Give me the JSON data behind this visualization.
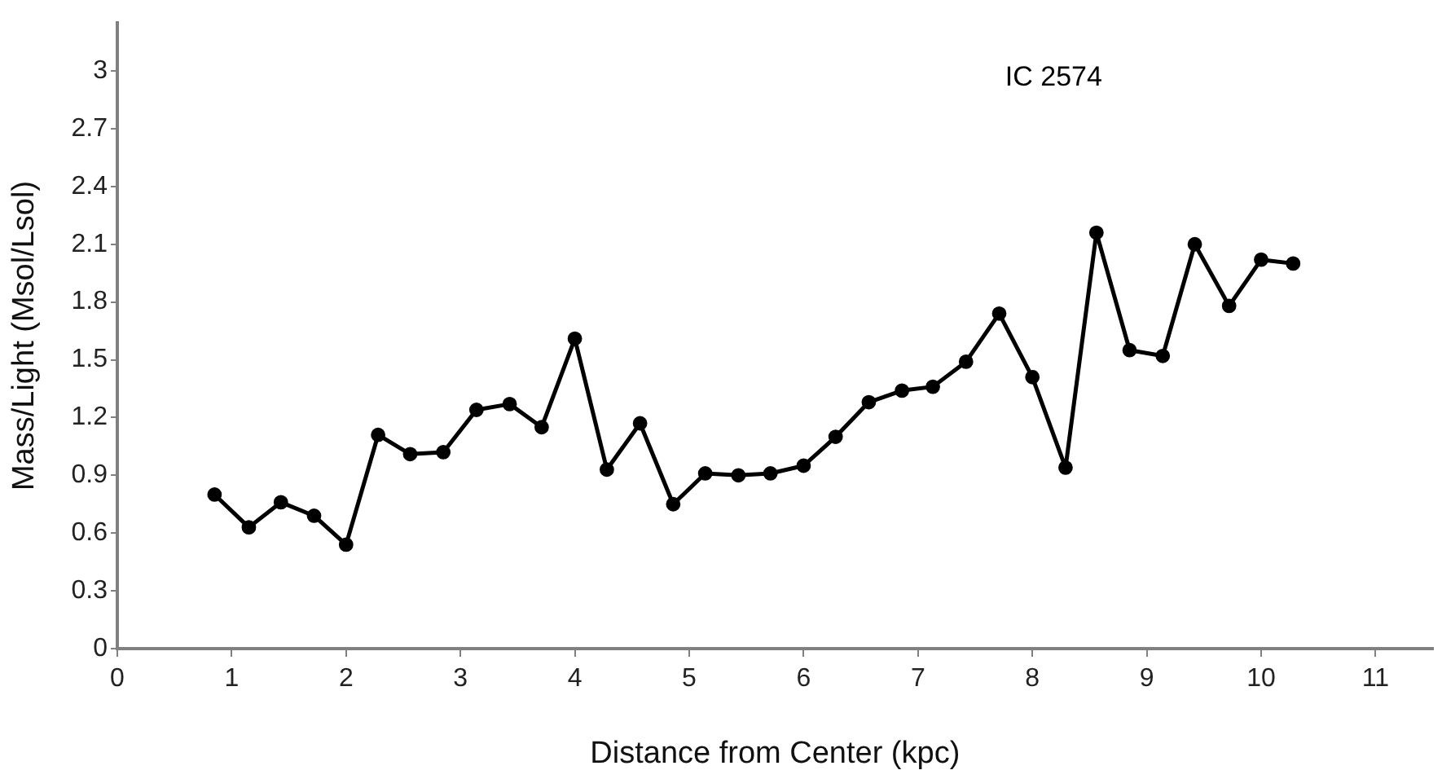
{
  "chart_data": {
    "type": "line",
    "xlabel": "Distance from Center (kpc)",
    "ylabel": "Mass/Light (Msol/Lsol)",
    "annotations": [
      "IC 2574"
    ],
    "x": [
      0.85,
      1.15,
      1.43,
      1.72,
      2.0,
      2.28,
      2.56,
      2.85,
      3.14,
      3.43,
      3.71,
      4.0,
      4.28,
      4.57,
      4.86,
      5.14,
      5.43,
      5.71,
      6.0,
      6.28,
      6.57,
      6.86,
      7.13,
      7.42,
      7.71,
      8.0,
      8.29,
      8.56,
      8.85,
      9.14,
      9.42,
      9.72,
      10.0,
      10.28
    ],
    "series": [
      {
        "color": "#000000",
        "values": [
          0.8,
          0.63,
          0.76,
          0.69,
          0.54,
          1.11,
          1.01,
          1.02,
          1.24,
          1.27,
          1.15,
          1.61,
          0.93,
          1.17,
          0.75,
          0.91,
          0.9,
          0.91,
          0.95,
          1.1,
          1.28,
          1.34,
          1.36,
          1.49,
          1.74,
          1.41,
          0.94,
          2.16,
          1.55,
          1.52,
          2.1,
          1.78,
          2.02,
          2.0
        ]
      }
    ],
    "xlim": [
      0,
      11.5
    ],
    "xticks": [
      0,
      1,
      2,
      3,
      4,
      5,
      6,
      7,
      8,
      9,
      10,
      11
    ],
    "ylim": [
      0,
      3.25
    ],
    "yticks": [
      0,
      0.3,
      0.6,
      0.9,
      1.2,
      1.5,
      1.8,
      2.1,
      2.4,
      2.7,
      3
    ],
    "grid": false,
    "legend": false,
    "marker": "circle",
    "line_style": "solid"
  }
}
